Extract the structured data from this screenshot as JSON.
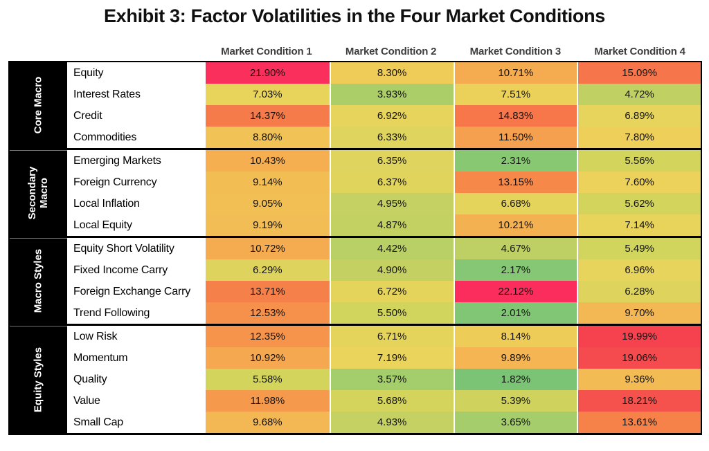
{
  "title": "Exhibit 3: Factor Volatilities in the Four Market Conditions",
  "colors": {
    "group_label_bg": "#000000",
    "group_label_text": "#ffffff",
    "table_border": "#000000",
    "low_value_green": "#7cc475",
    "mid_value_yellow": "#e9d45b",
    "high_value_red": "#fb2c5c"
  },
  "chart_data": {
    "type": "heatmap",
    "title": "Exhibit 3: Factor Volatilities in the Four Market Conditions",
    "columns": [
      "Market Condition 1",
      "Market Condition 2",
      "Market Condition 3",
      "Market Condition 4"
    ],
    "value_suffix": "%",
    "value_decimals": 2,
    "legend": "none",
    "color_scale": {
      "stops": [
        [
          1.8,
          "#7cc475"
        ],
        [
          2.4,
          "#8ac973"
        ],
        [
          3.0,
          "#98cb6f"
        ],
        [
          3.9,
          "#abce69"
        ],
        [
          4.9,
          "#c4d162"
        ],
        [
          5.6,
          "#d3d45c"
        ],
        [
          6.4,
          "#e0d45d"
        ],
        [
          7.2,
          "#ead45b"
        ],
        [
          8.3,
          "#efcb58"
        ],
        [
          9.2,
          "#f2bd54"
        ],
        [
          10.5,
          "#f5ae51"
        ],
        [
          11.5,
          "#f5a04e"
        ],
        [
          12.6,
          "#f6904b"
        ],
        [
          13.8,
          "#f67f49"
        ],
        [
          15.1,
          "#f7754b"
        ],
        [
          16.6,
          "#f6624c"
        ],
        [
          18.2,
          "#f5514d"
        ],
        [
          20.0,
          "#f6424f"
        ],
        [
          21.0,
          "#f83757"
        ],
        [
          22.2,
          "#fb2c5c"
        ]
      ]
    },
    "groups": [
      {
        "label": "Core Macro",
        "rows": [
          {
            "factor": "Equity",
            "values": [
              21.9,
              8.3,
              10.71,
              15.09
            ]
          },
          {
            "factor": "Interest Rates",
            "values": [
              7.03,
              3.93,
              7.51,
              4.72
            ]
          },
          {
            "factor": "Credit",
            "values": [
              14.37,
              6.92,
              14.83,
              6.89
            ]
          },
          {
            "factor": "Commodities",
            "values": [
              8.8,
              6.33,
              11.5,
              7.8
            ]
          }
        ]
      },
      {
        "label": "Secondary Macro",
        "label_lines": [
          "Secondary",
          "Macro"
        ],
        "rows": [
          {
            "factor": "Emerging Markets",
            "values": [
              10.43,
              6.35,
              2.31,
              5.56
            ]
          },
          {
            "factor": "Foreign Currency",
            "values": [
              9.14,
              6.37,
              13.15,
              7.6
            ]
          },
          {
            "factor": "Local Inflation",
            "values": [
              9.05,
              4.95,
              6.68,
              5.62
            ]
          },
          {
            "factor": "Local Equity",
            "values": [
              9.19,
              4.87,
              10.21,
              7.14
            ]
          }
        ]
      },
      {
        "label": "Macro Styles",
        "rows": [
          {
            "factor": "Equity Short Volatility",
            "values": [
              10.72,
              4.42,
              4.67,
              5.49
            ]
          },
          {
            "factor": "Fixed Income Carry",
            "values": [
              6.29,
              4.9,
              2.17,
              6.96
            ]
          },
          {
            "factor": "Foreign Exchange Carry",
            "values": [
              13.71,
              6.72,
              22.12,
              6.28
            ]
          },
          {
            "factor": "Trend Following",
            "values": [
              12.53,
              5.5,
              2.01,
              9.7
            ]
          }
        ]
      },
      {
        "label": "Equity Styles",
        "rows": [
          {
            "factor": "Low Risk",
            "values": [
              12.35,
              6.71,
              8.14,
              19.99
            ]
          },
          {
            "factor": "Momentum",
            "values": [
              10.92,
              7.19,
              9.89,
              19.06
            ]
          },
          {
            "factor": "Quality",
            "values": [
              5.58,
              3.57,
              1.82,
              9.36
            ]
          },
          {
            "factor": "Value",
            "values": [
              11.98,
              5.68,
              5.39,
              18.21
            ]
          },
          {
            "factor": "Small Cap",
            "values": [
              9.68,
              4.93,
              3.65,
              13.61
            ]
          }
        ]
      }
    ]
  }
}
